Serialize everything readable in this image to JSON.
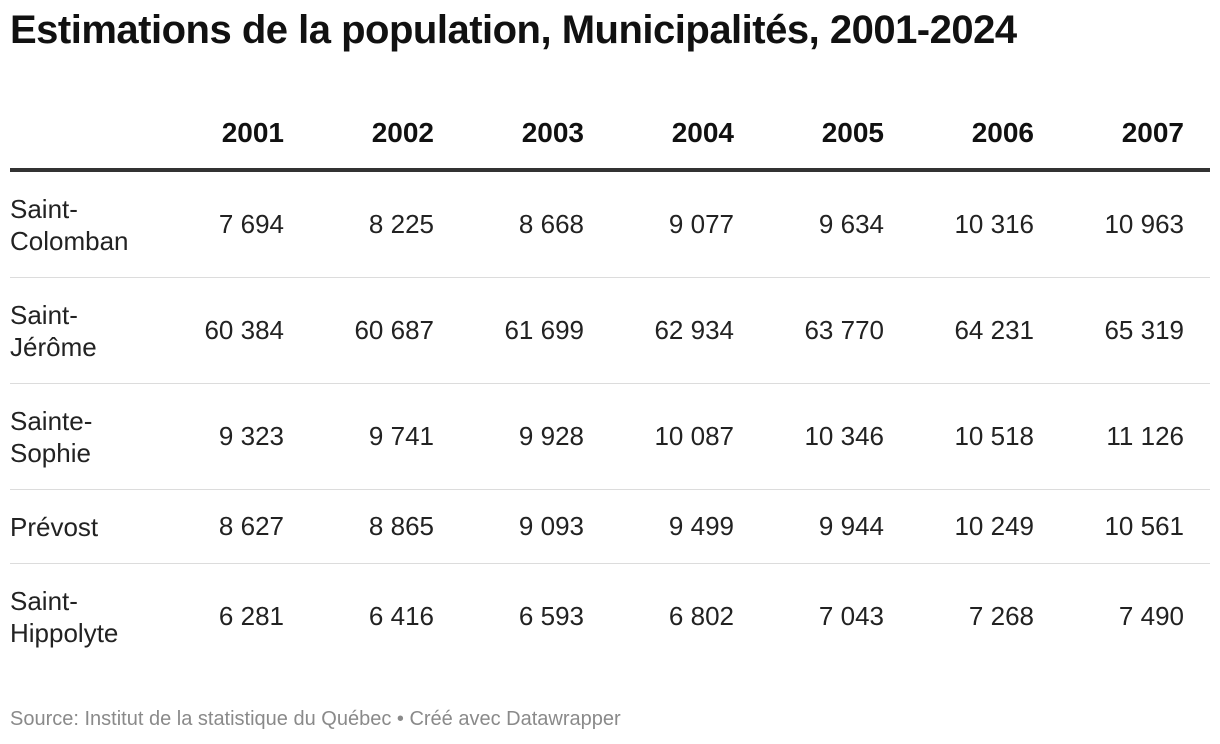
{
  "title": "Estimations de la population, Municipalités, 2001-2024",
  "source": "Source: Institut de la statistique du Québec • Créé avec Datawrapper",
  "chart_data": {
    "type": "table",
    "title": "Estimations de la population, Municipalités, 2001-2024",
    "columns": [
      "2001",
      "2002",
      "2003",
      "2004",
      "2005",
      "2006",
      "2007"
    ],
    "rows": [
      {
        "name": "Saint-Colomban",
        "label_lines": [
          "Saint-",
          "Colomban"
        ],
        "values": [
          "7 694",
          "8 225",
          "8 668",
          "9 077",
          "9 634",
          "10 316",
          "10 963"
        ]
      },
      {
        "name": "Saint-Jérôme",
        "label_lines": [
          "Saint-",
          "Jérôme"
        ],
        "values": [
          "60 384",
          "60 687",
          "61 699",
          "62 934",
          "63 770",
          "64 231",
          "65 319"
        ]
      },
      {
        "name": "Sainte-Sophie",
        "label_lines": [
          "Sainte-",
          "Sophie"
        ],
        "values": [
          "9 323",
          "9 741",
          "9 928",
          "10 087",
          "10 346",
          "10 518",
          "11 126"
        ]
      },
      {
        "name": "Prévost",
        "label_lines": [
          "Prévost"
        ],
        "values": [
          "8 627",
          "8 865",
          "9 093",
          "9 499",
          "9 944",
          "10 249",
          "10 561"
        ]
      },
      {
        "name": "Saint-Hippolyte",
        "label_lines": [
          "Saint-",
          "Hippolyte"
        ],
        "values": [
          "6 281",
          "6 416",
          "6 593",
          "6 802",
          "7 043",
          "7 268",
          "7 490"
        ]
      }
    ]
  }
}
